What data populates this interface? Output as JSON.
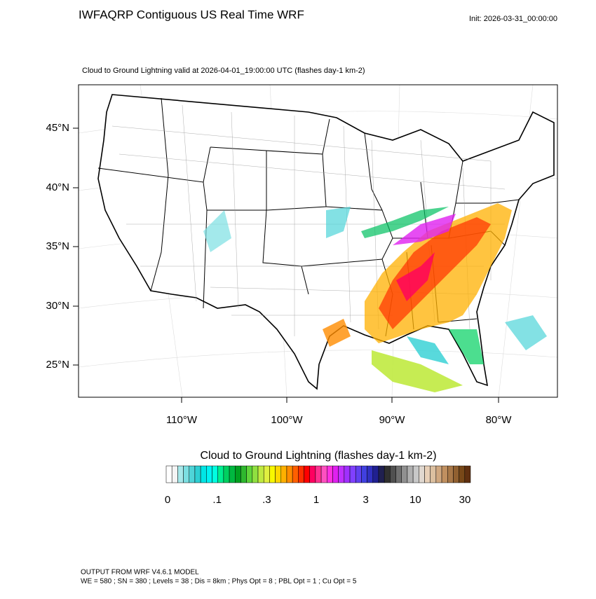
{
  "header": {
    "title": "IWFAQRP Contiguous US Real Time WRF",
    "init": "Init: 2026-03-31_00:00:00"
  },
  "map": {
    "subtitle": "Cloud to Ground Lightning valid at 2026-04-01_19:00:00 UTC   (flashes day-1 km-2)",
    "lat_labels": [
      "45°N",
      "40°N",
      "35°N",
      "30°N",
      "25°N"
    ],
    "lon_labels": [
      "110°W",
      "100°W",
      "90°W",
      "80°W"
    ]
  },
  "colorbar": {
    "title": "Cloud to Ground Lightning  (flashes day-1 km-2)",
    "colors": [
      "#ffffff",
      "#f4f4f4",
      "#a8e8ea",
      "#7cdfe2",
      "#4fd4d8",
      "#2ecfd3",
      "#00e5e5",
      "#00f2f2",
      "#00ffe0",
      "#00ee90",
      "#00d060",
      "#00b840",
      "#00a020",
      "#2eb82e",
      "#5fd43a",
      "#90e040",
      "#c0ea40",
      "#e0f040",
      "#f8f800",
      "#ffd700",
      "#ffb000",
      "#ff8c00",
      "#ff6000",
      "#ff3000",
      "#ff0000",
      "#ff0060",
      "#ff3090",
      "#ff50c0",
      "#ff30e0",
      "#e020f0",
      "#c030ff",
      "#a030ff",
      "#8040ff",
      "#6040f0",
      "#4040e0",
      "#3030c0",
      "#202090",
      "#202050",
      "#303030",
      "#505050",
      "#707070",
      "#909090",
      "#b0b0b0",
      "#c8c8c8",
      "#e0d8d0",
      "#e8d0b8",
      "#dcc0a0",
      "#d0a880",
      "#c09060",
      "#a87848",
      "#906030",
      "#784818",
      "#603010"
    ],
    "labels": [
      "0",
      ".1",
      ".3",
      "1",
      "3",
      "10",
      "30"
    ]
  },
  "footer": {
    "line1": "OUTPUT FROM WRF V4.6.1 MODEL",
    "line2": "WE = 580 ; SN = 380 ; Levels = 38 ; Dis = 8km ; Phys Opt = 8 ; PBL Opt = 1 ; Cu Opt = 5"
  }
}
